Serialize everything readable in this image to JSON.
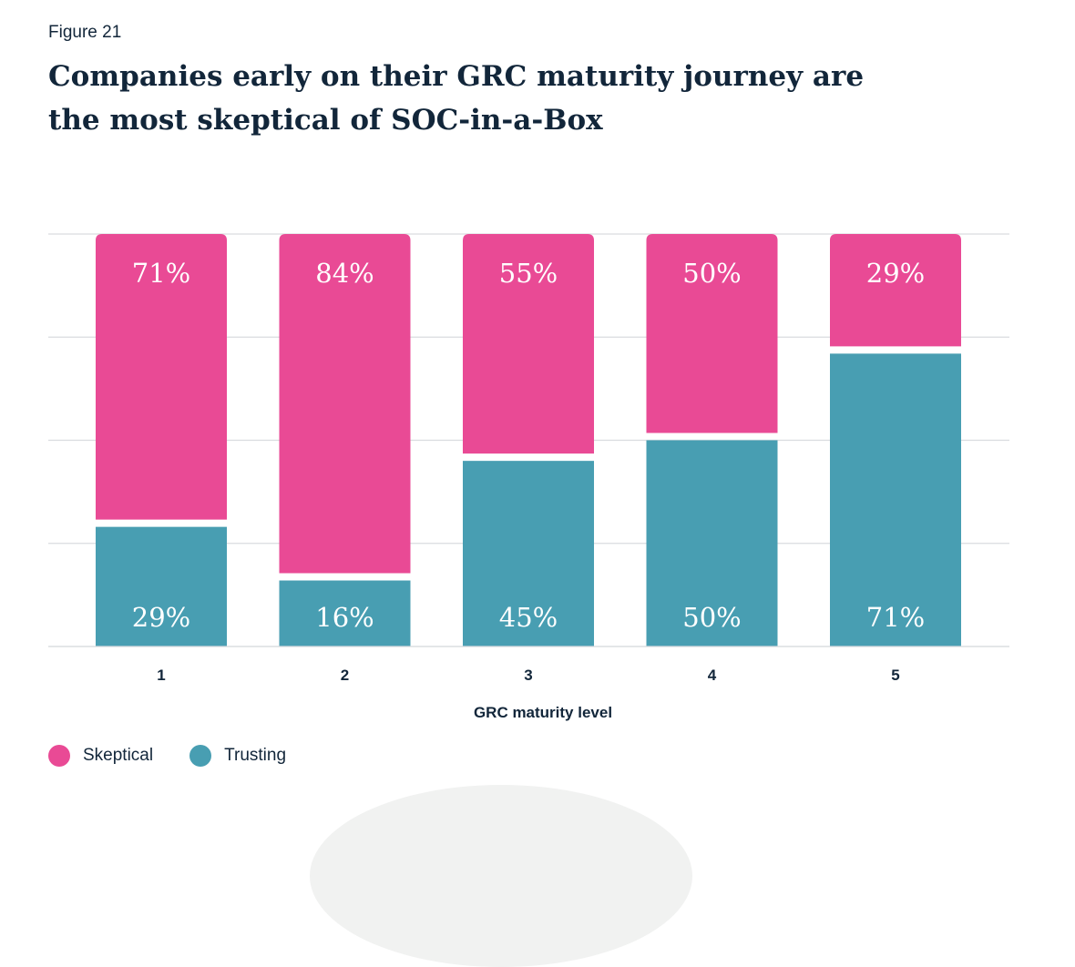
{
  "figure_label": "Figure 21",
  "title_line1": "Companies early on their GRC maturity journey are",
  "title_line2": "the most skeptical of SOC-in-a-Box",
  "colors": {
    "skeptical": "#e94a95",
    "trusting": "#489eb2",
    "grid": "#d9dcdf",
    "text": "#12263a"
  },
  "legend": [
    {
      "label": "Skeptical",
      "color": "#e94a95"
    },
    {
      "label": "Trusting",
      "color": "#489eb2"
    }
  ],
  "chart_data": {
    "type": "bar",
    "stacked": true,
    "categories": [
      "1",
      "2",
      "3",
      "4",
      "5"
    ],
    "xlabel": "GRC maturity level",
    "ylabel": "",
    "ylim": [
      0,
      100
    ],
    "grid": true,
    "legend_position": "bottom-left",
    "series": [
      {
        "name": "Trusting",
        "values": [
          29,
          16,
          45,
          50,
          71
        ],
        "labels": [
          "29%",
          "16%",
          "45%",
          "50%",
          "71%"
        ]
      },
      {
        "name": "Skeptical",
        "values": [
          71,
          84,
          55,
          50,
          29
        ],
        "labels": [
          "71%",
          "84%",
          "55%",
          "50%",
          "29%"
        ]
      }
    ]
  }
}
